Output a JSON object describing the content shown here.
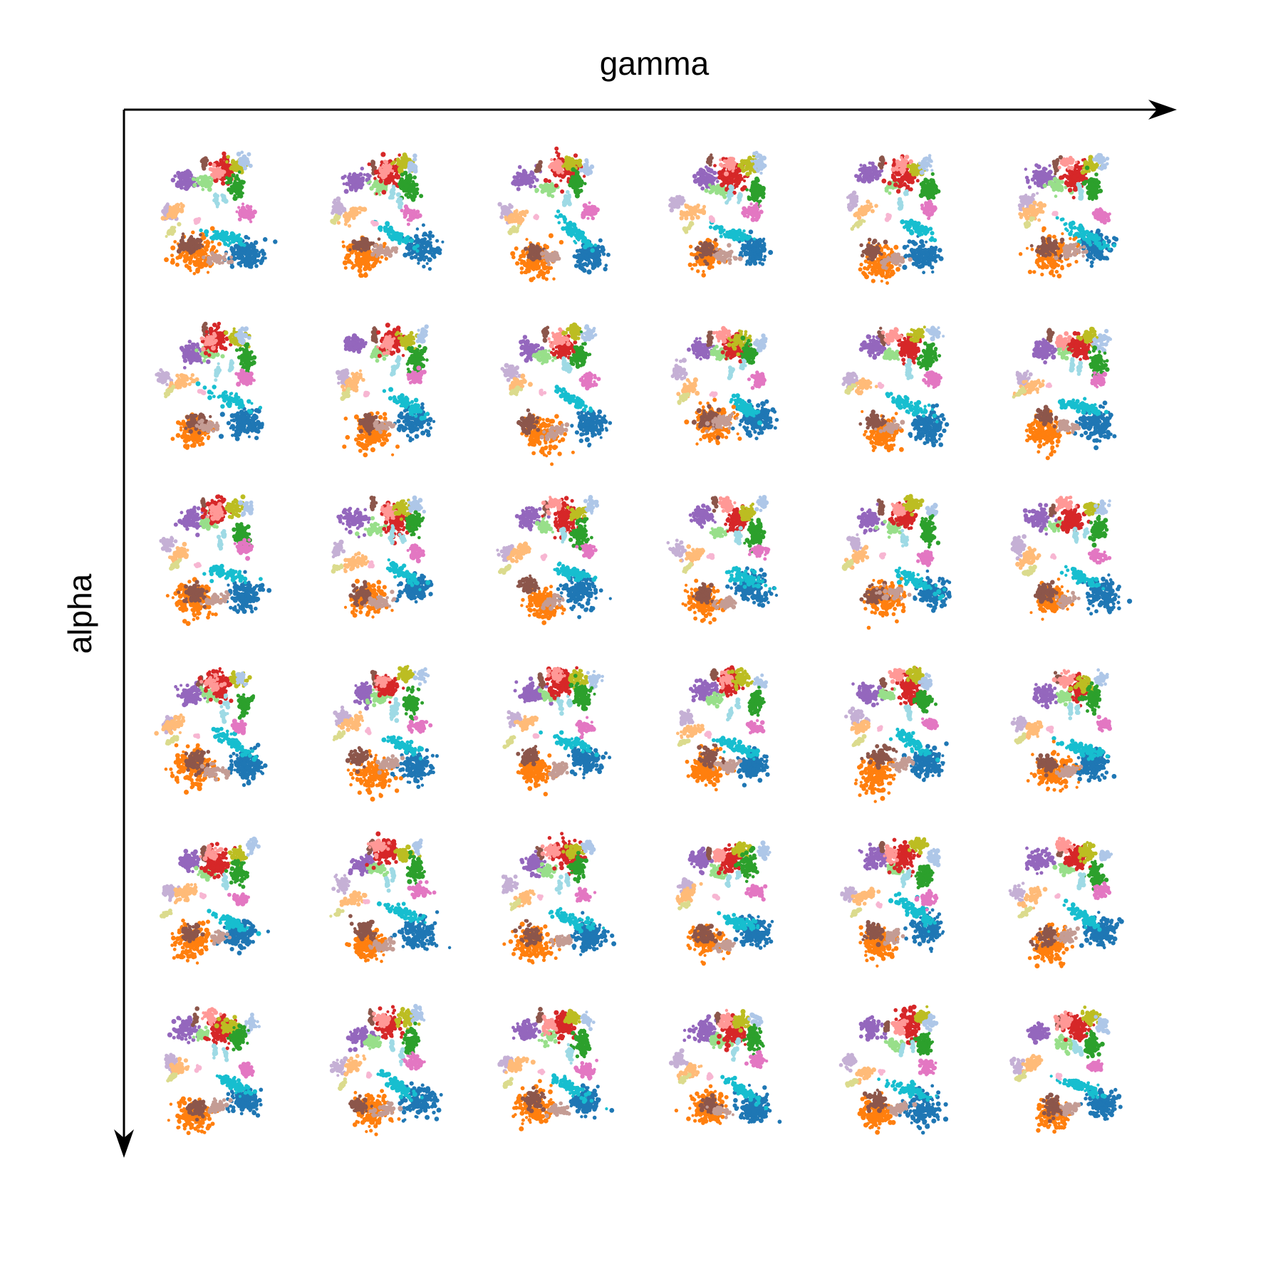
{
  "chart_data": {
    "type": "scatter",
    "title": "",
    "xlabel": "gamma",
    "ylabel": "alpha",
    "x_direction": "increasing-right",
    "y_direction": "increasing-down",
    "grid": false,
    "legend": "none",
    "layout": {
      "rows": 6,
      "cols": 6
    },
    "panel_note": "",
    "cluster_colors": [
      "#1f77b4",
      "#17becf",
      "#ff7f0e",
      "#8c564b",
      "#c49c94",
      "#9467bd",
      "#c5b0d5",
      "#ffbb78",
      "#dbdb8d",
      "#98df8a",
      "#d62728",
      "#ff9896",
      "#bcbd22",
      "#aec7e8",
      "#2ca02c",
      "#e377c2",
      "#9edae5",
      "#f7b6d2"
    ]
  },
  "axes": {
    "x_title": "gamma",
    "y_title": "alpha",
    "color": "#000000"
  }
}
